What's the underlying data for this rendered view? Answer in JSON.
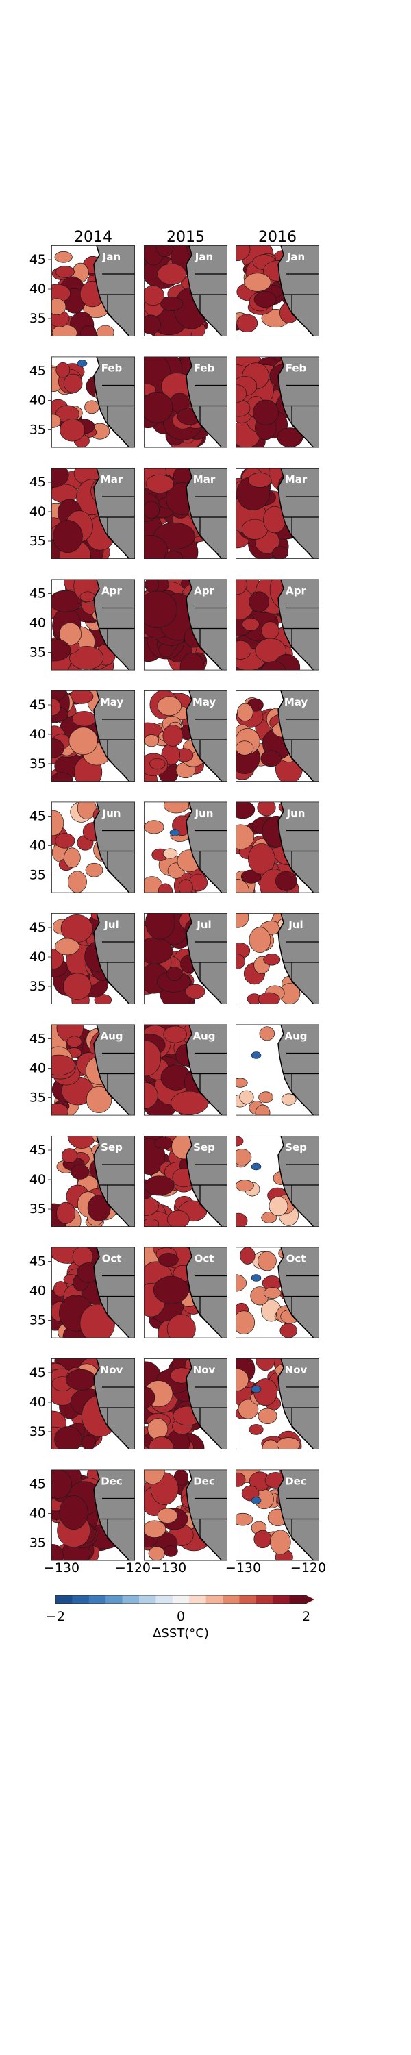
{
  "columns": [
    "2014",
    "2015",
    "2016"
  ],
  "months": [
    "Jan",
    "Feb",
    "Mar",
    "Apr",
    "May",
    "Jun",
    "Jul",
    "Aug",
    "Sep",
    "Oct",
    "Nov",
    "Dec"
  ],
  "y_ticks": [
    "45",
    "40",
    "35"
  ],
  "x_ticks": [
    "−130",
    "−120"
  ],
  "x_tick_overlap": "−120−130",
  "colorbar": {
    "min_label": "−2",
    "mid_label": "0",
    "max_label": "2",
    "label": "ΔSST(°C)",
    "colors": [
      "#1c4d8a",
      "#2a62a6",
      "#3d7bbb",
      "#5f98cb",
      "#8ab6d9",
      "#b5d0e6",
      "#d9e6f1",
      "#f2f2f2",
      "#f9d9c9",
      "#f4b49b",
      "#e68a6e",
      "#d25d4b",
      "#b83333",
      "#96182a",
      "#6a0a1f"
    ]
  },
  "map_colors": {
    "land": "#8c8c8c",
    "warm_dark": "#6f0d1f",
    "warm_mid": "#b22d33",
    "warm_light": "#e28468",
    "warm_pale": "#f6c7ad",
    "cool": "#2b63a8",
    "ocean": "#ffffff"
  },
  "warm_fraction": [
    [
      0.5,
      0.85,
      0.65
    ],
    [
      0.45,
      0.95,
      0.8
    ],
    [
      0.7,
      0.95,
      0.8
    ],
    [
      0.7,
      0.9,
      0.85
    ],
    [
      0.75,
      0.6,
      0.55
    ],
    [
      0.3,
      0.4,
      0.6
    ],
    [
      0.6,
      0.8,
      0.3
    ],
    [
      0.7,
      0.8,
      0.05
    ],
    [
      0.55,
      0.75,
      0.2
    ],
    [
      0.7,
      0.75,
      0.3
    ],
    [
      0.8,
      0.7,
      0.5
    ],
    [
      0.85,
      0.6,
      0.4
    ]
  ]
}
